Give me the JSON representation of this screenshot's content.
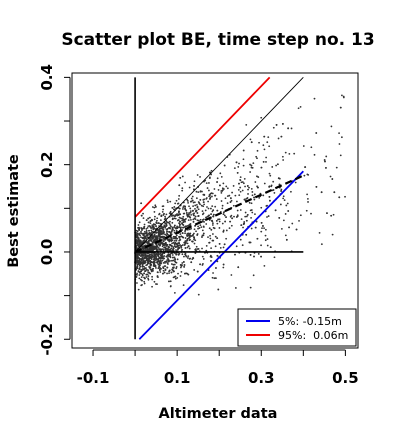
{
  "chart_data": {
    "type": "scatter",
    "title": "Scatter plot BE, time step no. 13",
    "xlabel": "Altimeter data",
    "ylabel": "Best estimate",
    "xlim": [
      -0.15,
      0.53
    ],
    "ylim": [
      -0.22,
      0.41
    ],
    "xticks": [
      -0.1,
      0.1,
      0.3,
      0.5
    ],
    "xtick_labels": [
      "-0.1",
      "0.1",
      "0.3",
      "0.5"
    ],
    "xticks_minor": [
      0.0,
      0.2,
      0.4
    ],
    "yticks": [
      -0.2,
      0.0,
      0.2,
      0.4
    ],
    "ytick_labels": [
      "-0.2",
      "0.0",
      "0.2",
      "0.4"
    ],
    "yticks_minor": [
      -0.1,
      0.1,
      0.3
    ],
    "grid": false,
    "legend_position": "bottom-right",
    "point_color": "#333333",
    "scatter_cloud": {
      "description_of_distribution": "approx. 2500 points, dense near x 0-0.1, y -0.05-0.05, spreading along rising trend",
      "n_points": 2500,
      "x_range": [
        0.0,
        0.5
      ],
      "y_range": [
        -0.21,
        0.4
      ],
      "centre": [
        0.04,
        0.01
      ]
    },
    "series": [
      {
        "name": "5%: -0.15m",
        "kind": "line",
        "color": "#0000ee",
        "width": 1.8,
        "x": [
          0.01,
          0.4
        ],
        "y": [
          -0.2,
          0.185
        ]
      },
      {
        "name": "95%:  0.06m",
        "kind": "line",
        "color": "#ee0000",
        "width": 1.8,
        "x": [
          0.0,
          0.32
        ],
        "y": [
          0.08,
          0.4
        ]
      },
      {
        "name": "",
        "kind": "line",
        "color": "#000000",
        "width": 0.9,
        "x": [
          0.0,
          0.4
        ],
        "y": [
          0.0,
          0.4
        ]
      },
      {
        "name": "",
        "kind": "dashed",
        "color": "#000000",
        "width": 2.2,
        "x": [
          0.0,
          0.4
        ],
        "y": [
          0.0,
          0.175
        ]
      },
      {
        "name": "",
        "kind": "line",
        "color": "#000000",
        "width": 1.6,
        "x": [
          0.0,
          0.4
        ],
        "y": [
          0.0,
          0.0
        ]
      },
      {
        "name": "",
        "kind": "line",
        "color": "#000000",
        "width": 1.6,
        "x": [
          0.0,
          0.0
        ],
        "y": [
          -0.2,
          0.4
        ]
      }
    ],
    "legend": [
      {
        "label": "5%: -0.15m",
        "color": "#0000ee"
      },
      {
        "label": "95%:  0.06m",
        "color": "#ee0000"
      }
    ]
  }
}
